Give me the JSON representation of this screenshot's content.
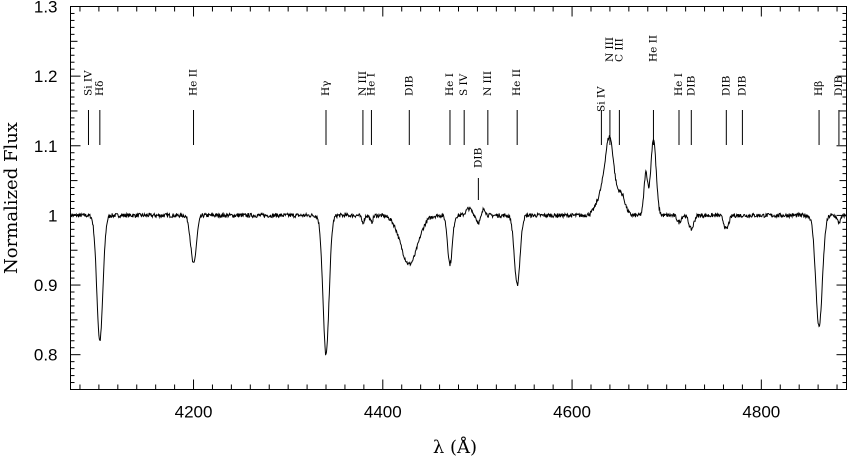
{
  "chart_data": {
    "type": "line",
    "title": "",
    "xlabel": "λ (Å)",
    "ylabel": "Normalized Flux",
    "xlim": [
      4070,
      4890
    ],
    "ylim": [
      0.75,
      1.3
    ],
    "x_ticks": [
      4200,
      4400,
      4600,
      4800
    ],
    "y_ticks": [
      0.8,
      0.9,
      1,
      1.1,
      1.2,
      1.3
    ],
    "grid": false,
    "legend": "none",
    "line_color": "#000000",
    "series": [
      {
        "name": "",
        "continuum": 1.0,
        "absorption": [
          {
            "center": 4101,
            "depth": 0.18,
            "width": 3.2
          },
          {
            "center": 4200,
            "depth": 0.07,
            "width": 3.0
          },
          {
            "center": 4340,
            "depth": 0.2,
            "width": 3.2
          },
          {
            "center": 4379,
            "depth": 0.01,
            "width": 1.5
          },
          {
            "center": 4388,
            "depth": 0.01,
            "width": 1.5
          },
          {
            "center": 4428,
            "depth": 0.07,
            "width": 9.0
          },
          {
            "center": 4471,
            "depth": 0.07,
            "width": 2.5
          },
          {
            "center": 4501,
            "depth": 0.01,
            "width": 2.0
          },
          {
            "center": 4542,
            "depth": 0.1,
            "width": 3.0
          },
          {
            "center": 4713,
            "depth": 0.01,
            "width": 2.0
          },
          {
            "center": 4726,
            "depth": 0.02,
            "width": 2.5
          },
          {
            "center": 4763,
            "depth": 0.02,
            "width": 2.5
          },
          {
            "center": 4861,
            "depth": 0.16,
            "width": 3.5
          },
          {
            "center": 4882,
            "depth": 0.01,
            "width": 2.0
          }
        ],
        "emission": [
          {
            "center": 4491,
            "height": 0.01,
            "width": 3.0
          },
          {
            "center": 4507,
            "height": 0.01,
            "width": 1.6
          },
          {
            "center": 4640,
            "height": 0.1,
            "width": 4.5
          },
          {
            "center": 4632,
            "height": 0.03,
            "width": 6.0
          },
          {
            "center": 4652,
            "height": 0.03,
            "width": 4.0
          },
          {
            "center": 4678,
            "height": 0.06,
            "width": 2.0
          },
          {
            "center": 4686,
            "height": 0.11,
            "width": 2.8
          }
        ],
        "noise": 0.003
      }
    ],
    "line_ids": [
      {
        "label": "Si IV",
        "lambda": 4089
      },
      {
        "label": "Hδ",
        "lambda": 4101
      },
      {
        "label": "He II",
        "lambda": 4200
      },
      {
        "label": "Hγ",
        "lambda": 4340
      },
      {
        "label": "N III",
        "lambda": 4379
      },
      {
        "label": "He I",
        "lambda": 4388
      },
      {
        "label": "DIB",
        "lambda": 4428
      },
      {
        "label": "He I",
        "lambda": 4471
      },
      {
        "label": "S IV",
        "lambda": 4486
      },
      {
        "label": "DIB",
        "lambda": 4501
      },
      {
        "label": "N III",
        "lambda": 4511
      },
      {
        "label": "He II",
        "lambda": 4542
      },
      {
        "label": "Si IV",
        "lambda": 4631
      },
      {
        "label": "N III",
        "lambda": 4640
      },
      {
        "label": "C III",
        "lambda": 4650
      },
      {
        "label": "He II",
        "lambda": 4686
      },
      {
        "label": "He I",
        "lambda": 4713
      },
      {
        "label": "DIB",
        "lambda": 4726
      },
      {
        "label": "DIB",
        "lambda": 4763
      },
      {
        "label": "DIB",
        "lambda": 4780
      },
      {
        "label": "Hβ",
        "lambda": 4861
      },
      {
        "label": "DIB",
        "lambda": 4882
      }
    ]
  }
}
